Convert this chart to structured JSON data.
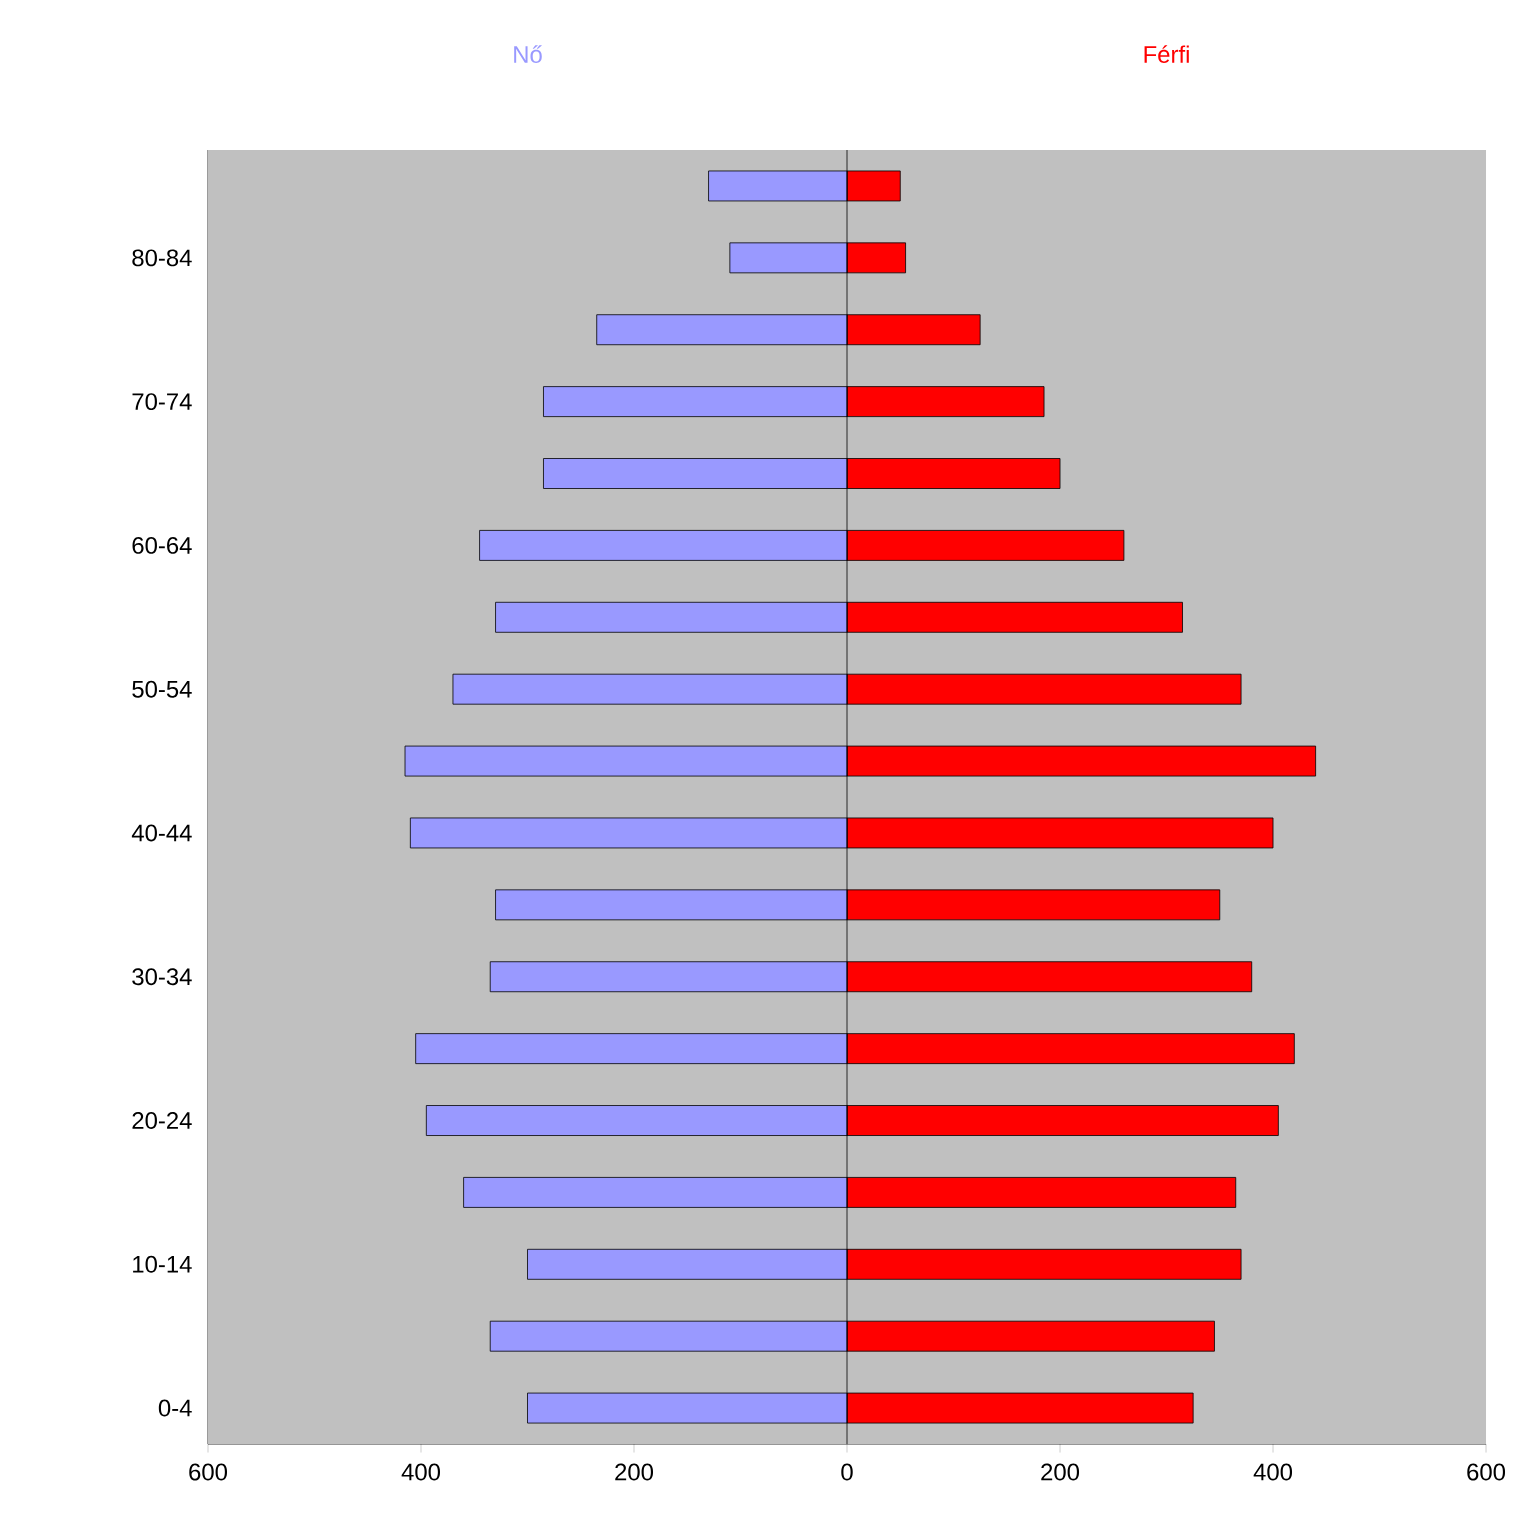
{
  "chart_data": {
    "type": "bar",
    "orientation": "horizontal",
    "categories": [
      null,
      "80-84",
      null,
      "70-74",
      null,
      "60-64",
      null,
      "50-54",
      null,
      "40-44",
      null,
      "30-34",
      null,
      "20-24",
      null,
      "10-14",
      null,
      "0-4"
    ],
    "series": [
      {
        "name": "Nő",
        "color": "#9999ff",
        "values": [
          -130,
          -110,
          -235,
          -285,
          -285,
          -345,
          -330,
          -370,
          -415,
          -410,
          -330,
          -335,
          -405,
          -395,
          -360,
          -300,
          -335,
          -300
        ]
      },
      {
        "name": "Férfi",
        "color": "#ff0000",
        "values": [
          50,
          55,
          125,
          185,
          200,
          260,
          315,
          370,
          440,
          400,
          350,
          380,
          420,
          405,
          365,
          370,
          345,
          325
        ]
      }
    ],
    "xlim": [
      -600,
      600
    ],
    "xticks": [
      {
        "value": -600,
        "label": "600"
      },
      {
        "value": -400,
        "label": "400"
      },
      {
        "value": -200,
        "label": "200"
      },
      0,
      200,
      400,
      600
    ],
    "stacked": true
  }
}
